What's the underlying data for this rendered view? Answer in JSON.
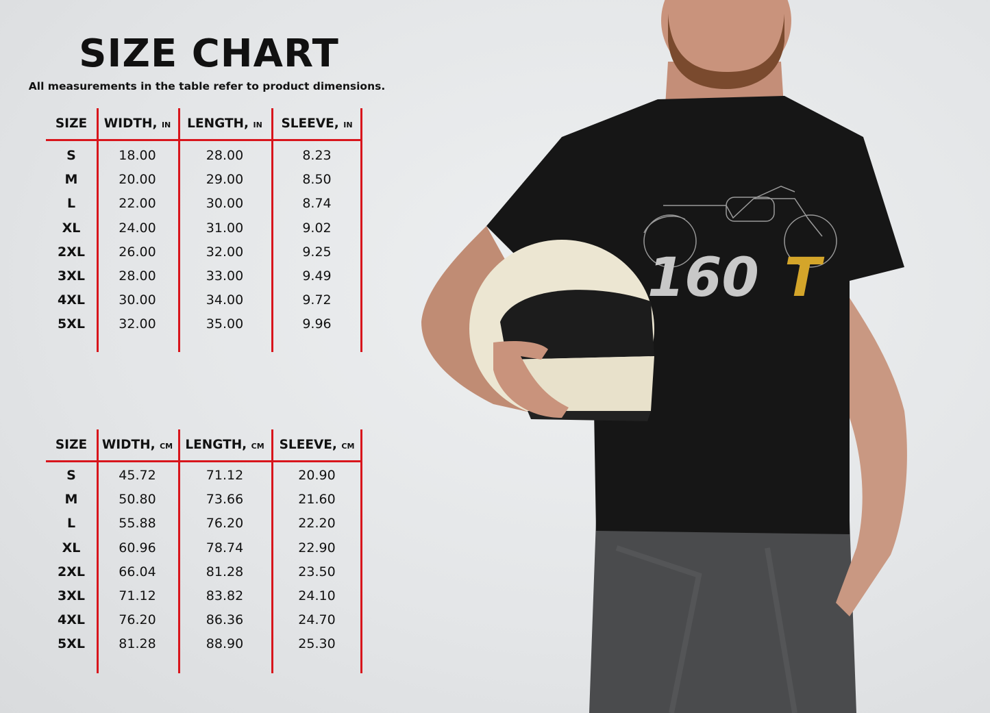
{
  "title": "SIZE CHART",
  "subtitle": "All measurements in the table refer to product dimensions.",
  "accent_color": "#d8151c",
  "tables": [
    {
      "headers": [
        {
          "label": "SIZE",
          "unit": ""
        },
        {
          "label": "WIDTH, ",
          "unit": "IN"
        },
        {
          "label": "LENGTH, ",
          "unit": "IN"
        },
        {
          "label": "SLEEVE, ",
          "unit": "IN"
        }
      ],
      "rows": [
        [
          "S",
          "18.00",
          "28.00",
          "8.23"
        ],
        [
          "M",
          "20.00",
          "29.00",
          "8.50"
        ],
        [
          "L",
          "22.00",
          "30.00",
          "8.74"
        ],
        [
          "XL",
          "24.00",
          "31.00",
          "9.02"
        ],
        [
          "2XL",
          "26.00",
          "32.00",
          "9.25"
        ],
        [
          "3XL",
          "28.00",
          "33.00",
          "9.49"
        ],
        [
          "4XL",
          "30.00",
          "34.00",
          "9.72"
        ],
        [
          "5XL",
          "32.00",
          "35.00",
          "9.96"
        ]
      ]
    },
    {
      "headers": [
        {
          "label": "SIZE",
          "unit": ""
        },
        {
          "label": "WIDTH, ",
          "unit": "CM"
        },
        {
          "label": "LENGTH, ",
          "unit": "CM"
        },
        {
          "label": "SLEEVE, ",
          "unit": "CM"
        }
      ],
      "rows": [
        [
          "S",
          "45.72",
          "71.12",
          "20.90"
        ],
        [
          "M",
          "50.80",
          "73.66",
          "21.60"
        ],
        [
          "L",
          "55.88",
          "76.20",
          "22.20"
        ],
        [
          "XL",
          "60.96",
          "78.74",
          "22.90"
        ],
        [
          "2XL",
          "66.04",
          "81.28",
          "23.50"
        ],
        [
          "3XL",
          "71.12",
          "83.82",
          "24.10"
        ],
        [
          "4XL",
          "76.20",
          "86.36",
          "24.70"
        ],
        [
          "5XL",
          "81.28",
          "88.90",
          "25.30"
        ]
      ]
    }
  ],
  "shirt_print": {
    "number": "160",
    "letter": "T",
    "number_color": "#c8c8c8",
    "letter_color": "#d4a52a"
  }
}
